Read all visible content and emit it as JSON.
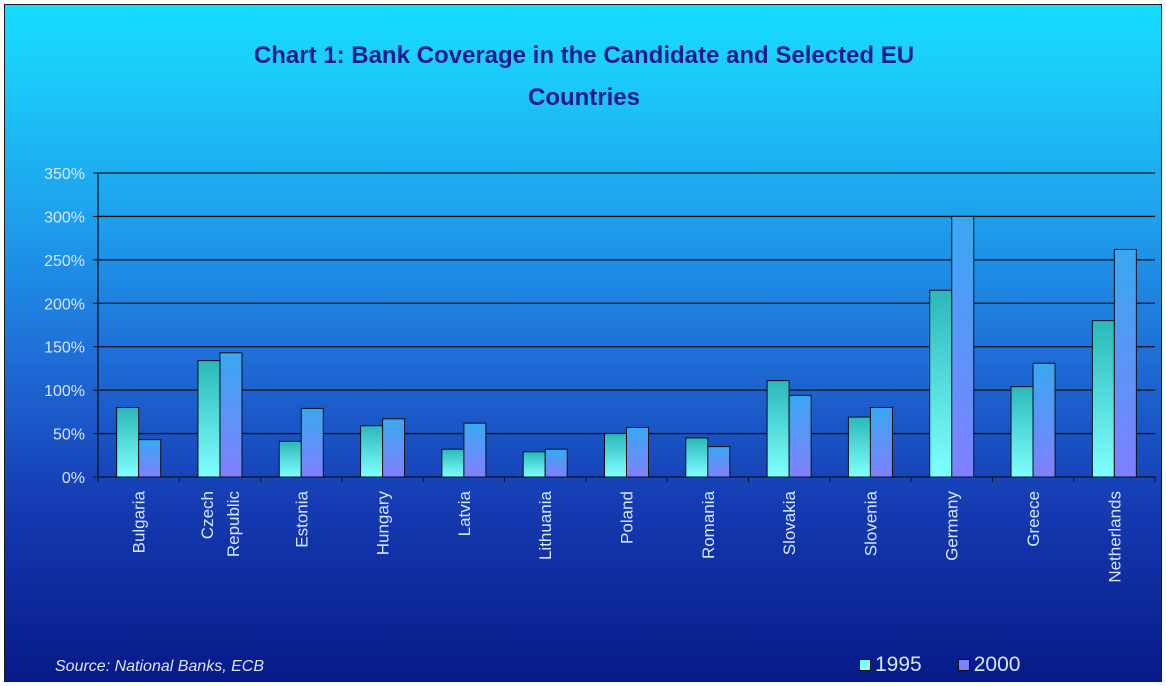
{
  "chart_data": {
    "type": "bar",
    "title": "Chart 1: Bank Coverage in the Candidate and Selected EU Countries",
    "title_lines": [
      "Chart 1: Bank Coverage in the Candidate and Selected EU",
      "Countries"
    ],
    "categories": [
      "Bulgaria",
      "Czech Republic",
      "Estonia",
      "Hungary",
      "Latvia",
      "Lithuania",
      "Poland",
      "Romania",
      "Slovakia",
      "Slovenia",
      "Germany",
      "Greece",
      "Netherlands"
    ],
    "category_lines": [
      [
        "Bulgaria"
      ],
      [
        "Czech",
        "Republic"
      ],
      [
        "Estonia"
      ],
      [
        "Hungary"
      ],
      [
        "Latvia"
      ],
      [
        "Lithuania"
      ],
      [
        "Poland"
      ],
      [
        "Romania"
      ],
      [
        "Slovakia"
      ],
      [
        "Slovenia"
      ],
      [
        "Germany"
      ],
      [
        "Greece"
      ],
      [
        "Netherlands"
      ]
    ],
    "series": [
      {
        "name": "1995",
        "values": [
          80,
          134,
          41,
          59,
          32,
          29,
          50,
          45,
          111,
          69,
          215,
          104,
          180
        ],
        "color_top": "#2bb8b8",
        "color_bottom": "#80ffff"
      },
      {
        "name": "2000",
        "values": [
          43,
          143,
          79,
          67,
          62,
          32,
          57,
          35,
          94,
          80,
          300,
          131,
          262
        ],
        "color_top": "#38a8f0",
        "color_bottom": "#8080ff"
      }
    ],
    "ylim": [
      0,
      350
    ],
    "yticks": [
      0,
      50,
      100,
      150,
      200,
      250,
      300,
      350
    ],
    "ytick_labels": [
      "0%",
      "50%",
      "100%",
      "150%",
      "200%",
      "250%",
      "300%",
      "350%"
    ],
    "xlabel": "",
    "ylabel": "",
    "grid": true,
    "legend_position": "bottom-right"
  },
  "source": "Source: National Banks, ECB",
  "colors": {
    "title": "#1a1a8c",
    "axis_labels": "#d8e6ff",
    "gridline": "#111111"
  }
}
